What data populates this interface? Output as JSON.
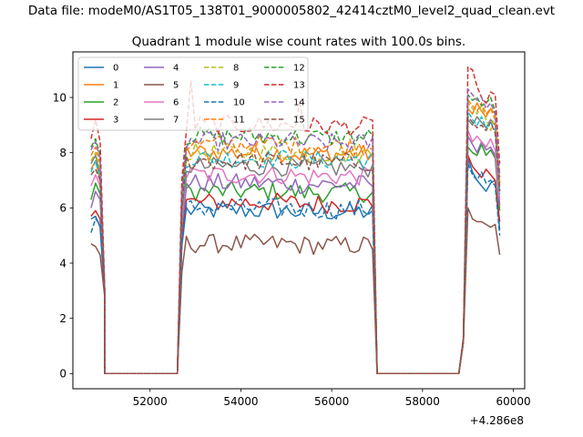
{
  "chart_data": {
    "type": "line",
    "suptitle": "Data file: modeM0/AS1T05_138T01_9000005802_42414cztM0_level2_quad_clean.evt",
    "title": "Quadrant 1 module wise count rates with 100.0s bins.",
    "xlabel": "",
    "ylabel": "",
    "x_offset_label": "+4.286e8",
    "xlim": [
      50300,
      60250
    ],
    "ylim": [
      -0.55,
      11.65
    ],
    "xticks": [
      52000,
      54000,
      56000,
      58000,
      60000
    ],
    "xtick_labels": [
      "52000",
      "54000",
      "56000",
      "58000",
      "60000"
    ],
    "yticks": [
      0,
      2,
      4,
      6,
      8,
      10
    ],
    "ytick_labels": [
      "0",
      "2",
      "4",
      "6",
      "8",
      "10"
    ],
    "grid": false,
    "legend_position": "upper-left",
    "segments": [
      {
        "start": 50700,
        "end": 51000,
        "count": 4
      },
      {
        "start": 51000,
        "end": 52600,
        "count": 17
      },
      {
        "start": 52600,
        "end": 57000,
        "count": 45
      },
      {
        "start": 57000,
        "end": 58800,
        "count": 19
      },
      {
        "start": 58800,
        "end": 59700,
        "count": 10
      }
    ],
    "series": [
      {
        "name": "0",
        "color": "#1f77b4",
        "dash": false,
        "level": 5.9,
        "seg1": [
          5.6,
          5.7,
          5.3,
          2.8
        ],
        "seg5": [
          0.0,
          1.2,
          7.8,
          7.3,
          7.0,
          6.8,
          6.6,
          6.9,
          7.0,
          5.2
        ]
      },
      {
        "name": "1",
        "color": "#ff7f0e",
        "dash": false,
        "level": 8.0,
        "seg1": [
          7.4,
          7.7,
          7.0,
          3.0
        ],
        "seg5": [
          0.0,
          1.2,
          9.6,
          9.4,
          9.8,
          9.5,
          9.3,
          9.6,
          9.4,
          6.8
        ]
      },
      {
        "name": "2",
        "color": "#2ca02c",
        "dash": false,
        "level": 6.6,
        "seg1": [
          6.3,
          6.9,
          6.5,
          3.0
        ],
        "seg5": [
          0.0,
          1.2,
          8.2,
          8.0,
          7.9,
          8.3,
          7.9,
          8.1,
          7.8,
          5.9
        ]
      },
      {
        "name": "3",
        "color": "#d62728",
        "dash": false,
        "level": 6.2,
        "seg1": [
          5.7,
          5.9,
          5.6,
          3.0
        ],
        "seg5": [
          0.0,
          1.2,
          7.9,
          7.5,
          7.3,
          7.1,
          7.4,
          7.2,
          7.0,
          5.5
        ]
      },
      {
        "name": "4",
        "color": "#9467bd",
        "dash": false,
        "level": 6.9,
        "seg1": [
          6.0,
          6.6,
          6.3,
          3.0
        ],
        "seg5": [
          0.0,
          1.2,
          8.6,
          8.3,
          8.0,
          8.4,
          8.1,
          8.2,
          7.9,
          6.1
        ]
      },
      {
        "name": "5",
        "color": "#8c564b",
        "dash": false,
        "level": 4.7,
        "seg1": [
          4.7,
          4.6,
          4.3,
          2.8
        ],
        "seg5": [
          0.0,
          1.1,
          6.0,
          5.6,
          5.5,
          5.5,
          5.4,
          5.3,
          5.4,
          4.3
        ]
      },
      {
        "name": "6",
        "color": "#e377c2",
        "dash": false,
        "level": 7.2,
        "seg1": [
          6.8,
          7.2,
          6.8,
          3.0
        ],
        "seg5": [
          0.0,
          1.2,
          8.8,
          8.4,
          8.6,
          8.4,
          8.2,
          8.5,
          8.1,
          6.3
        ]
      },
      {
        "name": "7",
        "color": "#7f7f7f",
        "dash": false,
        "level": 7.5,
        "seg1": [
          7.6,
          7.9,
          7.2,
          3.0
        ],
        "seg5": [
          0.0,
          1.2,
          9.2,
          9.0,
          9.3,
          9.1,
          8.9,
          9.2,
          9.0,
          6.6
        ]
      },
      {
        "name": "8",
        "color": "#bcbd22",
        "dash": true,
        "level": 8.0,
        "seg1": [
          7.7,
          8.0,
          7.4,
          3.0
        ],
        "seg5": [
          0.0,
          1.2,
          9.8,
          9.6,
          9.4,
          9.7,
          9.2,
          8.8,
          9.4,
          6.9
        ]
      },
      {
        "name": "9",
        "color": "#17becf",
        "dash": true,
        "level": 7.8,
        "seg1": [
          7.3,
          7.7,
          7.1,
          3.0
        ],
        "seg5": [
          0.0,
          1.2,
          9.5,
          9.2,
          9.0,
          9.3,
          8.9,
          9.1,
          8.8,
          6.5
        ]
      },
      {
        "name": "10",
        "color": "#1f77b4",
        "dash": true,
        "level": 6.0,
        "seg1": [
          5.1,
          5.6,
          5.4,
          3.0
        ],
        "seg5": [
          0.0,
          1.2,
          7.6,
          7.2,
          7.0,
          7.3,
          6.9,
          7.0,
          6.8,
          5.0
        ]
      },
      {
        "name": "11",
        "color": "#ff7f0e",
        "dash": true,
        "level": 8.3,
        "seg1": [
          7.9,
          8.2,
          7.6,
          3.0
        ],
        "seg5": [
          0.0,
          1.2,
          9.9,
          9.7,
          9.5,
          9.8,
          9.4,
          9.6,
          9.2,
          6.9
        ]
      },
      {
        "name": "12",
        "color": "#2ca02c",
        "dash": true,
        "level": 8.6,
        "seg1": [
          8.2,
          8.5,
          7.9,
          3.1
        ],
        "seg5": [
          0.0,
          1.3,
          10.1,
          9.9,
          10.0,
          9.7,
          9.8,
          10.0,
          9.5,
          7.2
        ]
      },
      {
        "name": "13",
        "color": "#d62728",
        "dash": true,
        "level": 9.0,
        "seg1": [
          8.5,
          9.2,
          8.4,
          3.1
        ],
        "seg5": [
          0.0,
          1.3,
          11.1,
          11.0,
          10.4,
          10.0,
          9.8,
          10.2,
          10.1,
          7.6
        ]
      },
      {
        "name": "14",
        "color": "#9467bd",
        "dash": true,
        "level": 8.4,
        "seg1": [
          8.1,
          8.4,
          7.8,
          3.0
        ],
        "seg5": [
          0.0,
          1.3,
          10.3,
          10.1,
          9.9,
          10.0,
          9.6,
          9.8,
          9.4,
          7.1
        ]
      },
      {
        "name": "15",
        "color": "#8c564b",
        "dash": true,
        "level": 7.7,
        "seg1": [
          7.2,
          7.4,
          7.0,
          3.0
        ],
        "seg5": [
          0.0,
          1.2,
          9.3,
          9.1,
          8.9,
          9.0,
          8.8,
          9.1,
          8.7,
          6.6
        ]
      }
    ],
    "spike_annotations": [
      {
        "series": "13",
        "note": "peak ~10.6 near x=52900 (dashed, light red)"
      }
    ]
  }
}
